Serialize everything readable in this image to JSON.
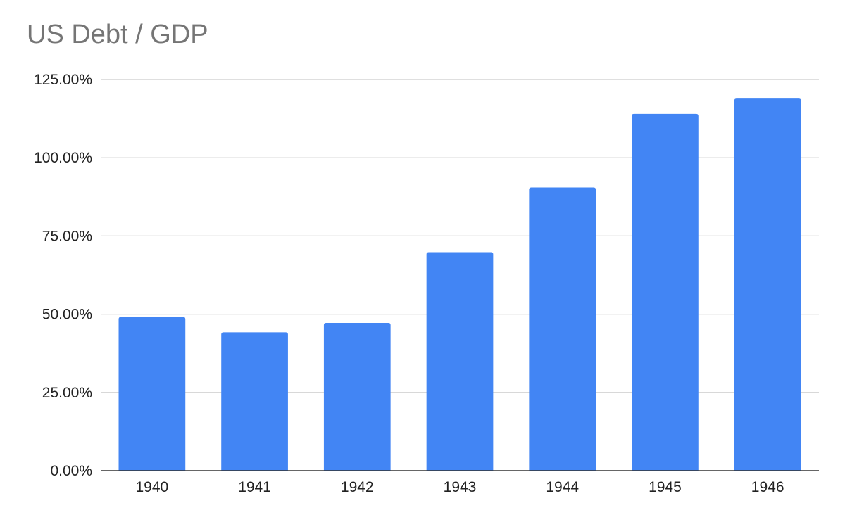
{
  "chart_data": {
    "type": "bar",
    "title": "US Debt / GDP",
    "xlabel": "",
    "ylabel": "",
    "categories": [
      "1940",
      "1941",
      "1942",
      "1943",
      "1944",
      "1945",
      "1946"
    ],
    "series": [
      {
        "values": [
          49.1,
          44.2,
          47.2,
          69.8,
          90.5,
          114.0,
          118.9
        ]
      }
    ],
    "ylim": [
      0,
      125
    ],
    "yticks": [
      {
        "value": 0,
        "label": "0.00%"
      },
      {
        "value": 25,
        "label": "25.00%"
      },
      {
        "value": 50,
        "label": "50.00%"
      },
      {
        "value": 75,
        "label": "75.00%"
      },
      {
        "value": 100,
        "label": "100.00%"
      },
      {
        "value": 125,
        "label": "125.00%"
      }
    ],
    "grid": true,
    "legend": "none",
    "colors": {
      "bar": "#4285f4",
      "grid": "#cccccc",
      "axis": "#333333",
      "title": "#757575"
    }
  }
}
